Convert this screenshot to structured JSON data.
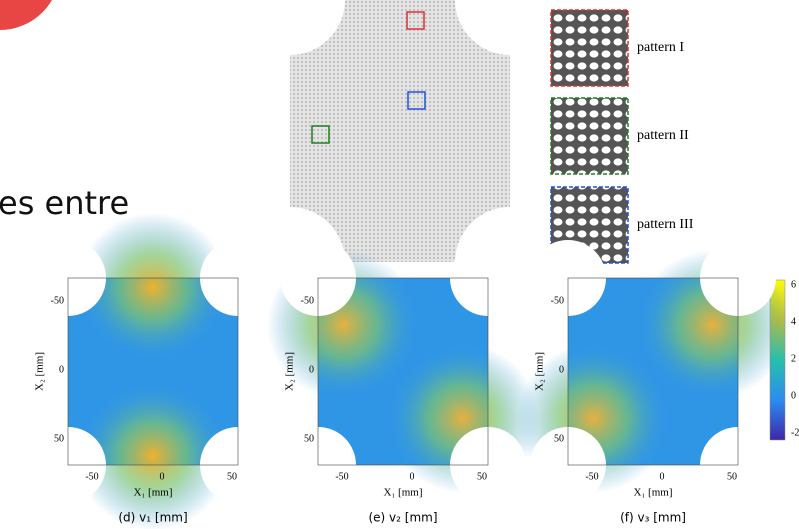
{
  "slide_text": "es entre",
  "top_figure": {
    "patterns": [
      "pattern I",
      "pattern II",
      "pattern III"
    ]
  },
  "panels": [
    {
      "caption": "(d) v₁ [mm]",
      "x_label": "X₁ [mm]",
      "y_label": "X₂ [mm]",
      "x_ticks": [
        "-50",
        "0",
        "50"
      ],
      "y_ticks": [
        "50",
        "0",
        "-50"
      ]
    },
    {
      "caption": "(e) v₂ [mm]",
      "x_label": "X₁ [mm]",
      "y_label": "X₂ [mm]",
      "x_ticks": [
        "-50",
        "0",
        "50"
      ],
      "y_ticks": [
        "50",
        "0",
        "-50"
      ]
    },
    {
      "caption": "(f) v₃ [mm]",
      "x_label": "X₁ [mm]",
      "y_label": "X₂ [mm]",
      "x_ticks": [
        "-50",
        "0",
        "50"
      ],
      "y_ticks": [
        "50",
        "0",
        "-50"
      ]
    }
  ],
  "colorbar": {
    "ticks": [
      "6",
      "4",
      "2",
      "0",
      "-2"
    ]
  }
}
